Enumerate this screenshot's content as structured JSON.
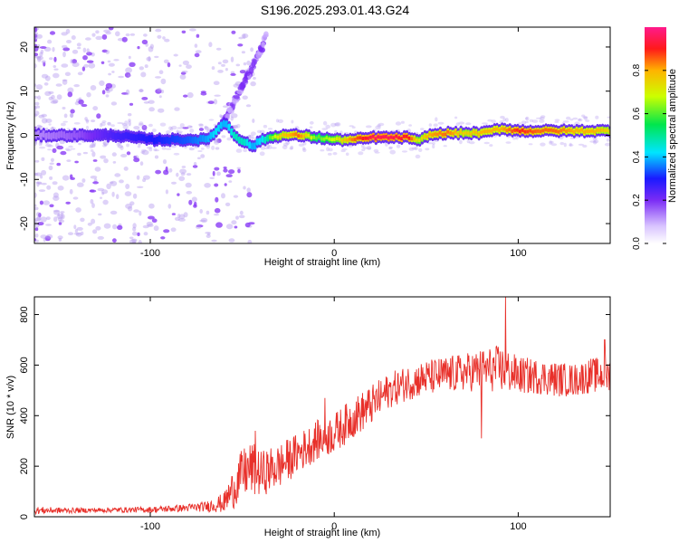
{
  "title": "S196.2025.293.01.43.G24",
  "colors": {
    "snr_line": "#e8302a",
    "frame": "#000000",
    "spec_sparse": "#b59bf0",
    "spec_mid": "#8a3cf5"
  },
  "chart_data": [
    {
      "type": "heatmap",
      "name": "spectrogram",
      "xlabel": "Height of straight line (km)",
      "ylabel": "Frequency (Hz)",
      "xlim": [
        -163,
        150
      ],
      "ylim": [
        -24.5,
        24.5
      ],
      "xticks": [
        -100,
        0,
        100
      ],
      "yticks": [
        -20,
        -10,
        0,
        10,
        20
      ],
      "xtick_labels": [
        "-100",
        "0",
        "100"
      ],
      "ytick_labels": [
        "-20",
        "-10",
        "0",
        "10",
        "20"
      ],
      "colorbar": {
        "label": "Normalized spectral amplitude",
        "ticks": [
          "0.0",
          "0.2",
          "0.4",
          "0.6",
          "0.8"
        ],
        "range": [
          0,
          1
        ]
      },
      "ridge": {
        "height_km": [
          -163,
          -140,
          -120,
          -100,
          -80,
          -70,
          -65,
          -60,
          -55,
          -50,
          -45,
          -40,
          -30,
          -20,
          -10,
          0,
          10,
          20,
          30,
          40,
          45,
          50,
          60,
          70,
          80,
          90,
          100,
          110,
          120,
          130,
          140,
          150
        ],
        "freq_hz": [
          0,
          0,
          0,
          -1,
          -1,
          -1,
          1,
          3,
          0,
          -1.5,
          -2.5,
          -1,
          0,
          0,
          -0.5,
          -1,
          -1,
          -0.5,
          -0.5,
          -0.5,
          -1.5,
          0,
          0.5,
          0.5,
          0.5,
          1.5,
          1,
          1,
          1,
          1,
          1,
          1
        ],
        "amplitude": [
          0.15,
          0.2,
          0.3,
          0.35,
          0.4,
          0.45,
          0.5,
          0.45,
          0.55,
          0.55,
          0.45,
          0.5,
          0.75,
          0.85,
          0.6,
          0.7,
          0.85,
          0.95,
          0.95,
          0.9,
          0.7,
          0.8,
          0.85,
          0.75,
          0.8,
          0.8,
          0.9,
          0.85,
          0.85,
          0.8,
          0.8,
          0.75
        ]
      },
      "branch": {
        "height_km": [
          -60,
          -55,
          -50,
          -45,
          -40,
          -37
        ],
        "freq_hz": [
          3,
          7,
          11,
          15,
          19,
          23
        ]
      }
    },
    {
      "type": "line",
      "name": "snr",
      "xlabel": "Height of straight line (km)",
      "ylabel": "SNR (10 * v/v)",
      "xlim": [
        -163,
        150
      ],
      "ylim": [
        0,
        870
      ],
      "xticks": [
        -100,
        0,
        100
      ],
      "yticks": [
        0,
        200,
        400,
        600,
        800
      ],
      "xtick_labels": [
        "-100",
        "0",
        "100"
      ],
      "ytick_labels": [
        "0",
        "200",
        "400",
        "600",
        "800"
      ],
      "trend": {
        "x": [
          -163,
          -140,
          -120,
          -100,
          -80,
          -70,
          -60,
          -55,
          -50,
          -45,
          -40,
          -30,
          -20,
          -10,
          0,
          10,
          20,
          30,
          40,
          50,
          60,
          70,
          80,
          90,
          100,
          110,
          120,
          130,
          140,
          150
        ],
        "y": [
          25,
          25,
          27,
          28,
          35,
          40,
          55,
          110,
          170,
          190,
          170,
          200,
          250,
          300,
          330,
          390,
          440,
          500,
          530,
          550,
          560,
          570,
          580,
          585,
          560,
          555,
          545,
          540,
          560,
          560
        ],
        "noise": [
          15,
          10,
          10,
          12,
          15,
          20,
          40,
          80,
          100,
          110,
          90,
          90,
          80,
          80,
          80,
          80,
          80,
          70,
          70,
          70,
          75,
          75,
          85,
          95,
          75,
          70,
          70,
          65,
          70,
          70
        ]
      },
      "spikes": {
        "x": [
          -43,
          -5,
          93,
          80,
          147
        ],
        "y": [
          340,
          470,
          870,
          310,
          700
        ]
      }
    }
  ]
}
